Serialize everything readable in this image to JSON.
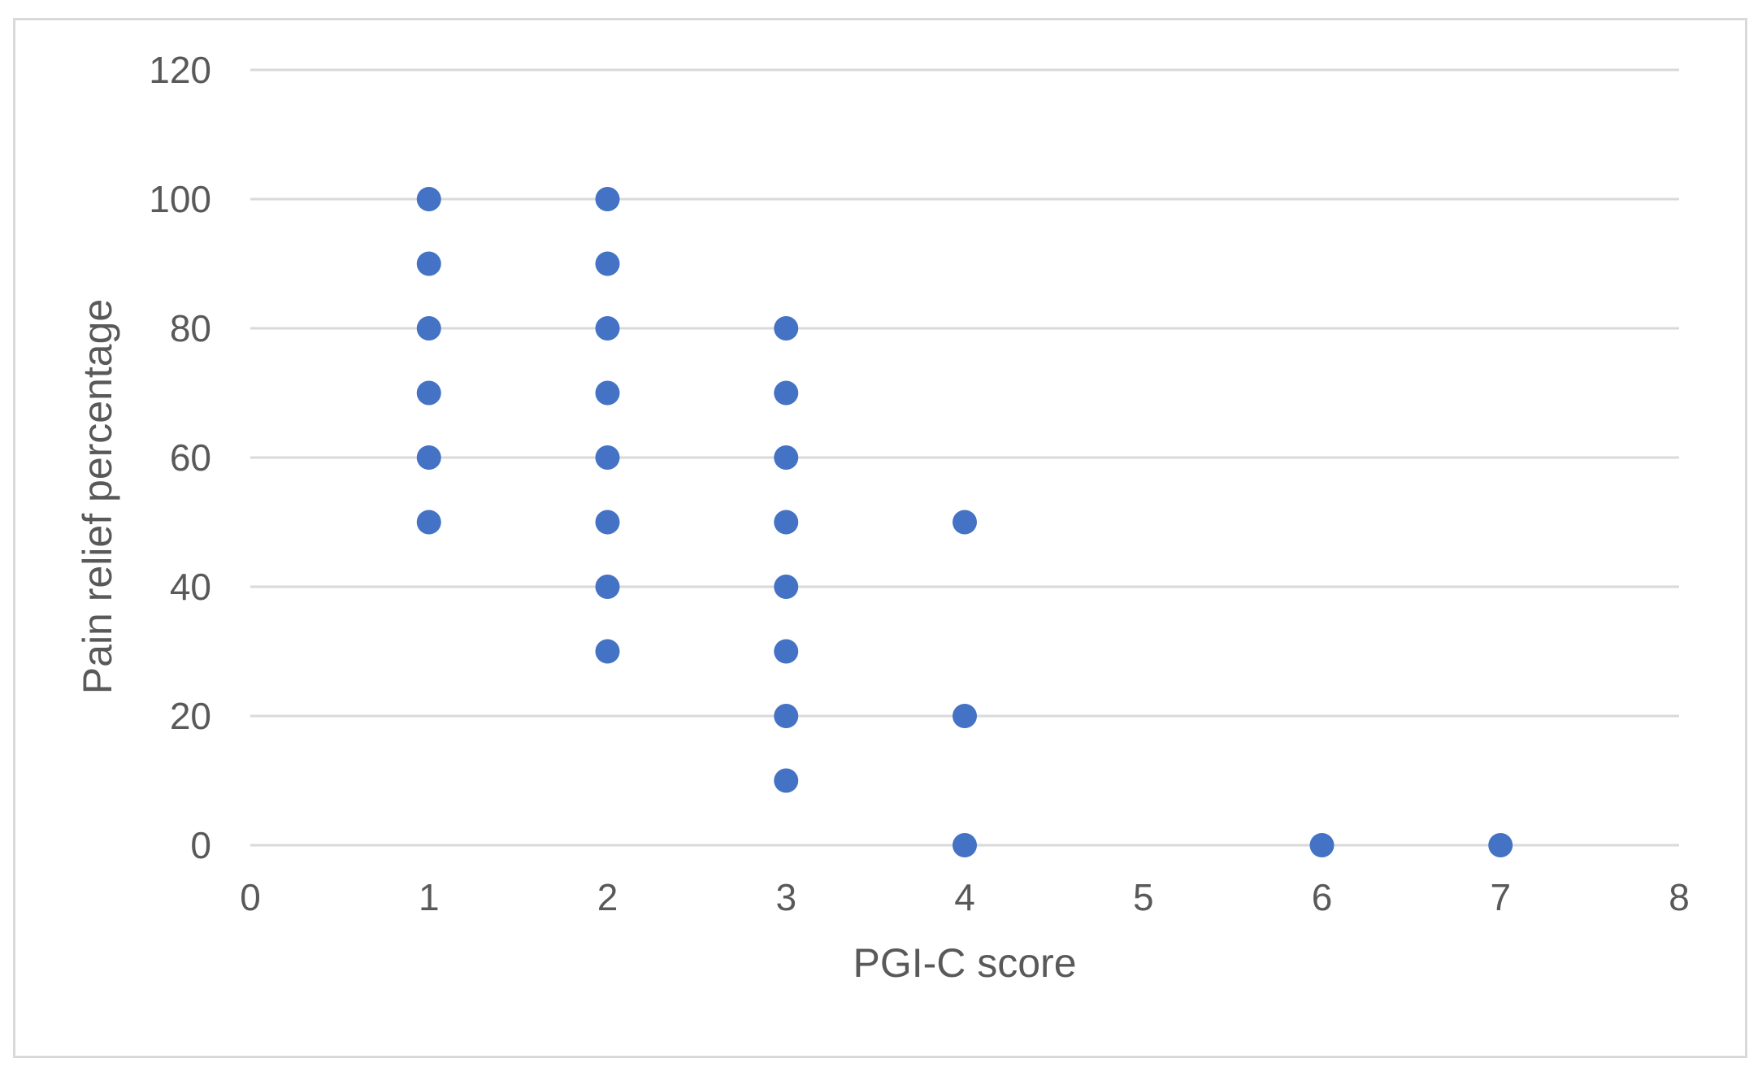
{
  "chart_data": {
    "type": "scatter",
    "title": "",
    "xlabel": "PGI-C score",
    "ylabel": "Pain relief percentage",
    "xlim": [
      0,
      8
    ],
    "ylim": [
      0,
      120
    ],
    "x_ticks": [
      "0",
      "1",
      "2",
      "3",
      "4",
      "5",
      "6",
      "7",
      "8"
    ],
    "y_ticks": [
      "0",
      "20",
      "40",
      "60",
      "80",
      "100",
      "120"
    ],
    "grid": "horizontal",
    "legend": "none",
    "series": [
      {
        "color": "#4472c4",
        "points": [
          {
            "x": 1,
            "y": 100
          },
          {
            "x": 1,
            "y": 90
          },
          {
            "x": 1,
            "y": 80
          },
          {
            "x": 1,
            "y": 70
          },
          {
            "x": 1,
            "y": 60
          },
          {
            "x": 1,
            "y": 50
          },
          {
            "x": 2,
            "y": 100
          },
          {
            "x": 2,
            "y": 90
          },
          {
            "x": 2,
            "y": 80
          },
          {
            "x": 2,
            "y": 70
          },
          {
            "x": 2,
            "y": 60
          },
          {
            "x": 2,
            "y": 50
          },
          {
            "x": 2,
            "y": 40
          },
          {
            "x": 2,
            "y": 30
          },
          {
            "x": 3,
            "y": 80
          },
          {
            "x": 3,
            "y": 70
          },
          {
            "x": 3,
            "y": 60
          },
          {
            "x": 3,
            "y": 50
          },
          {
            "x": 3,
            "y": 40
          },
          {
            "x": 3,
            "y": 30
          },
          {
            "x": 3,
            "y": 20
          },
          {
            "x": 3,
            "y": 10
          },
          {
            "x": 4,
            "y": 50
          },
          {
            "x": 4,
            "y": 20
          },
          {
            "x": 4,
            "y": 0
          },
          {
            "x": 6,
            "y": 0
          },
          {
            "x": 7,
            "y": 0
          }
        ]
      }
    ],
    "colors": {
      "marker": "#4472c4",
      "gridline": "#d9d9d9",
      "text": "#595959",
      "frame": "#d9d9d9"
    }
  }
}
